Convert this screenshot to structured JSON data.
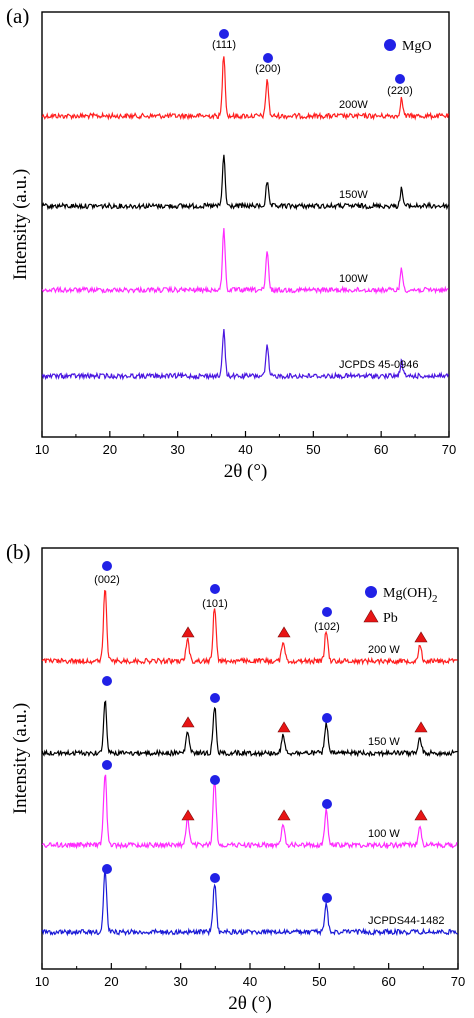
{
  "chart_data": [
    {
      "panel_label": "(a)",
      "type": "line",
      "xlabel": "2θ (°)",
      "ylabel": "Intensity (a.u.)",
      "xlim": [
        10,
        70
      ],
      "xticks": [
        "10",
        "20",
        "30",
        "40",
        "50",
        "60",
        "70"
      ],
      "grid": false,
      "legend_placement": "top-right",
      "legend": [
        {
          "label": "MgO",
          "marker": "circle",
          "color": "#2121e6"
        }
      ],
      "peaks": [
        {
          "x": 36.8,
          "label": "(111)",
          "phase": "MgO"
        },
        {
          "x": 43.2,
          "label": "(200)",
          "phase": "MgO"
        },
        {
          "x": 63.0,
          "label": "(220)",
          "phase": "MgO"
        }
      ],
      "series": [
        {
          "name": "200W",
          "color": "#ff1f1f",
          "peaks": [
            {
              "x": 36.8,
              "height": 1.0
            },
            {
              "x": 43.2,
              "height": 0.6
            },
            {
              "x": 63.0,
              "height": 0.28
            }
          ]
        },
        {
          "name": "150W",
          "color": "#000000",
          "peaks": [
            {
              "x": 36.8,
              "height": 0.8
            },
            {
              "x": 43.2,
              "height": 0.38
            },
            {
              "x": 63.0,
              "height": 0.28
            }
          ]
        },
        {
          "name": "100W",
          "color": "#ff2bff",
          "peaks": [
            {
              "x": 36.8,
              "height": 0.98
            },
            {
              "x": 43.2,
              "height": 0.62
            },
            {
              "x": 63.0,
              "height": 0.33
            }
          ]
        },
        {
          "name": "JCPDS 45-0946",
          "color": "#4a16e0",
          "peaks": [
            {
              "x": 36.8,
              "height": 0.72
            },
            {
              "x": 43.2,
              "height": 0.48
            },
            {
              "x": 63.0,
              "height": 0.23
            }
          ]
        }
      ]
    },
    {
      "panel_label": "(b)",
      "type": "line",
      "xlabel": "2θ (°)",
      "ylabel": "Intensity (a.u.)",
      "xlim": [
        10,
        70
      ],
      "xticks": [
        "10",
        "20",
        "30",
        "40",
        "50",
        "60",
        "70"
      ],
      "grid": false,
      "legend_placement": "top-right",
      "legend": [
        {
          "label": "Mg(OH)",
          "subscript": "2",
          "marker": "circle",
          "color": "#2121e6"
        },
        {
          "label": "Pb",
          "marker": "triangle",
          "color": "#e81515"
        }
      ],
      "peaks": [
        {
          "x": 19.1,
          "label": "(002)",
          "phase": "Mg(OH)2"
        },
        {
          "x": 34.9,
          "label": "(101)",
          "phase": "Mg(OH)2"
        },
        {
          "x": 51.0,
          "label": "(102)",
          "phase": "Mg(OH)2"
        },
        {
          "x": 31.0,
          "label": "",
          "phase": "Pb"
        },
        {
          "x": 44.8,
          "label": "",
          "phase": "Pb"
        },
        {
          "x": 64.5,
          "label": "",
          "phase": "Pb"
        }
      ],
      "series": [
        {
          "name": "200 W",
          "color": "#ff1f1f",
          "peaks": [
            {
              "x": 19.1,
              "height": 1.0
            },
            {
              "x": 31.0,
              "height": 0.32
            },
            {
              "x": 34.9,
              "height": 0.75
            },
            {
              "x": 44.8,
              "height": 0.28
            },
            {
              "x": 51.0,
              "height": 0.42
            },
            {
              "x": 64.5,
              "height": 0.22
            }
          ]
        },
        {
          "name": "150 W",
          "color": "#000000",
          "peaks": [
            {
              "x": 19.1,
              "height": 0.72
            },
            {
              "x": 31.0,
              "height": 0.3
            },
            {
              "x": 34.9,
              "height": 0.65
            },
            {
              "x": 44.8,
              "height": 0.25
            },
            {
              "x": 51.0,
              "height": 0.42
            },
            {
              "x": 64.5,
              "height": 0.2
            }
          ]
        },
        {
          "name": "100 W",
          "color": "#ff2bff",
          "peaks": [
            {
              "x": 19.1,
              "height": 1.0
            },
            {
              "x": 31.0,
              "height": 0.38
            },
            {
              "x": 34.9,
              "height": 0.9
            },
            {
              "x": 44.8,
              "height": 0.3
            },
            {
              "x": 51.0,
              "height": 0.48
            },
            {
              "x": 64.5,
              "height": 0.28
            }
          ]
        },
        {
          "name": "JCPDS44-1482",
          "color": "#1a1ad6",
          "peaks": [
            {
              "x": 19.1,
              "height": 0.85
            },
            {
              "x": 34.9,
              "height": 0.68
            },
            {
              "x": 51.0,
              "height": 0.38
            }
          ]
        }
      ]
    }
  ]
}
